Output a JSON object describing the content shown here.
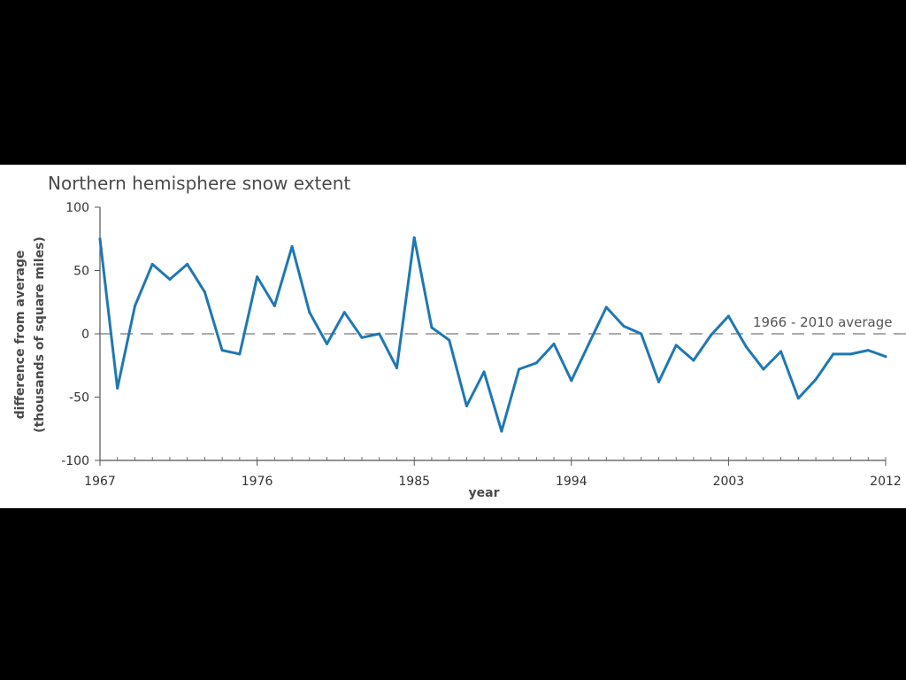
{
  "chart_data": {
    "type": "line",
    "title": "Northern hemisphere snow extent",
    "xlabel": "year",
    "ylabel_lines": [
      "difference from average",
      "(thousands of square miles)"
    ],
    "xlim": [
      1967,
      2012
    ],
    "ylim": [
      -100,
      100
    ],
    "x_ticks": [
      1967,
      1976,
      1985,
      1994,
      2003,
      2012
    ],
    "y_ticks": [
      100,
      50,
      0,
      -50,
      -100
    ],
    "y_tick_labels": [
      "100",
      "50",
      "0",
      "-50",
      "-100"
    ],
    "grid": false,
    "reference_line": {
      "value": 0,
      "label": "1966 - 2010 average",
      "style": "dashed"
    },
    "series": [
      {
        "color": "#1f77b4",
        "x": [
          1967,
          1968,
          1969,
          1970,
          1971,
          1972,
          1973,
          1974,
          1975,
          1976,
          1977,
          1978,
          1979,
          1980,
          1981,
          1982,
          1983,
          1984,
          1985,
          1986,
          1987,
          1988,
          1989,
          1990,
          1991,
          1992,
          1993,
          1994,
          1995,
          1996,
          1997,
          1998,
          1999,
          2000,
          2001,
          2002,
          2003,
          2004,
          2005,
          2006,
          2007,
          2008,
          2009,
          2010,
          2011,
          2012
        ],
        "y": [
          75,
          -43,
          22,
          55,
          43,
          55,
          33,
          -13,
          -16,
          45,
          22,
          69,
          17,
          -8,
          17,
          -3,
          0,
          -27,
          76,
          5,
          -5,
          -57,
          -30,
          -77,
          -28,
          -23,
          -8,
          -37,
          -8,
          21,
          6,
          0,
          -38,
          -9,
          -21,
          -1,
          14,
          -10,
          -28,
          -14,
          -51,
          -36,
          -16,
          -16,
          -13,
          -18
        ]
      }
    ]
  },
  "colors": {
    "frame": "#000000",
    "plot_background": "#ffffff",
    "axis": "#555555",
    "reference_line": "#777777"
  }
}
